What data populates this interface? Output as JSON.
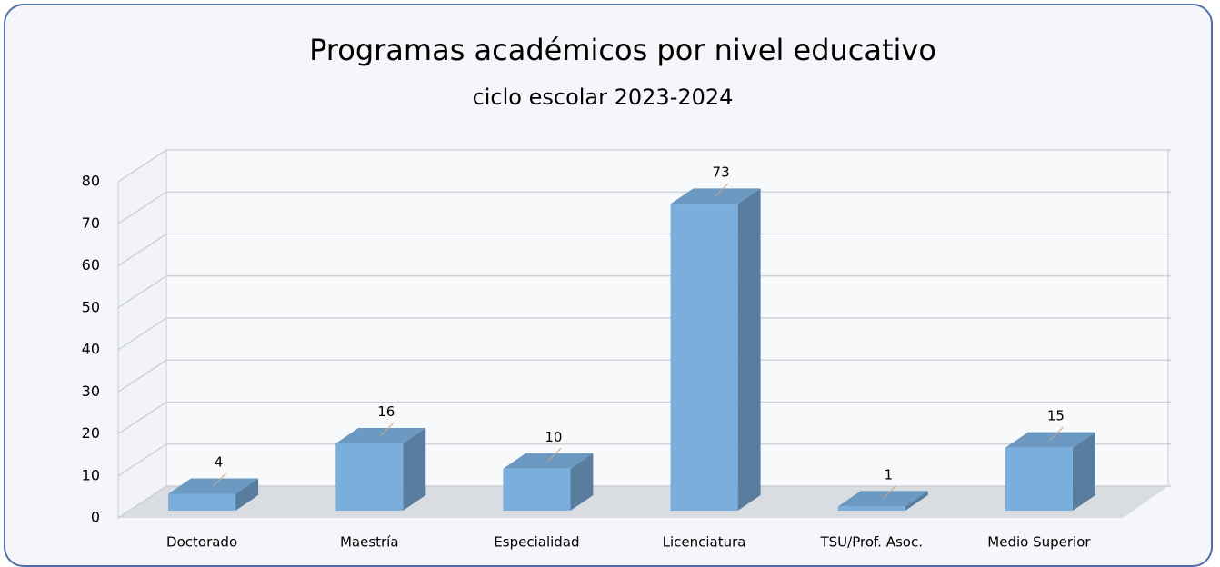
{
  "chart_data": {
    "type": "bar3d",
    "title": "Programas académicos por nivel educativo",
    "subtitle": "ciclo escolar 2023-2024",
    "categories": [
      "Doctorado",
      "Maestría",
      "Especialidad",
      "Licenciatura",
      "TSU/Prof. Asoc.",
      "Medio Superior"
    ],
    "values": [
      4,
      16,
      10,
      73,
      1,
      15
    ],
    "color": "#7aaedc",
    "ylim": [
      0,
      80
    ],
    "yticks": [
      0,
      10,
      20,
      30,
      40,
      50,
      60,
      70,
      80
    ],
    "grid": true
  }
}
